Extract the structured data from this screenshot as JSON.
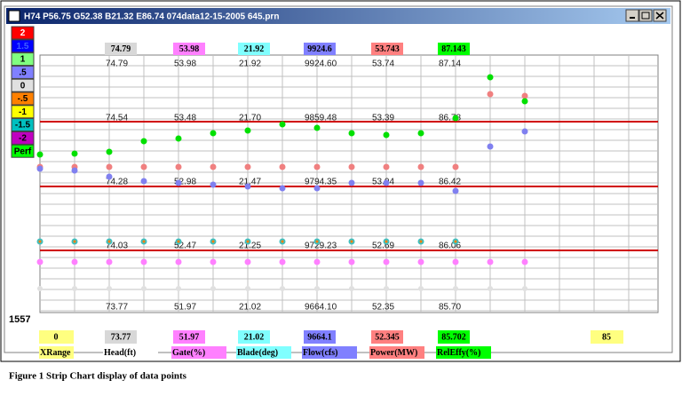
{
  "window": {
    "title": "H74 P56.75 G52.38 B21.32 E86.74 074data12-15-2005 645.prn"
  },
  "scale_buttons": [
    "2",
    "1.5",
    "1",
    ".5",
    "0",
    "-.5",
    "-1",
    "-1.5",
    "-2",
    "Perf"
  ],
  "header_values": [
    "74.79",
    "53.98",
    "21.92",
    "9924.6",
    "53.743",
    "87.143"
  ],
  "column_values": [
    [
      "74.79",
      "53.98",
      "21.92",
      "9924.60",
      "53.74",
      "87.14"
    ],
    [
      "74.54",
      "53.48",
      "21.70",
      "9859.48",
      "53.39",
      "86.78"
    ],
    [
      "74.28",
      "52.98",
      "21.47",
      "9794.35",
      "53.04",
      "86.42"
    ],
    [
      "74.03",
      "52.47",
      "21.25",
      "9729.23",
      "52.69",
      "86.06"
    ],
    [
      "73.77",
      "51.97",
      "21.02",
      "9664.10",
      "52.35",
      "85.70"
    ]
  ],
  "row_count": "1557",
  "footer": {
    "xrange": {
      "value": "0",
      "label": "XRange"
    },
    "boxes": [
      {
        "value": "73.77",
        "label": "Head(ft)"
      },
      {
        "value": "51.97",
        "label": "Gate(%)"
      },
      {
        "value": "21.02",
        "label": "Blade(deg)"
      },
      {
        "value": "9664.1",
        "label": "Flow(cfs)"
      },
      {
        "value": "52.345",
        "label": "Power(MW)"
      },
      {
        "value": "85.702",
        "label": "RelEffy(%)"
      }
    ],
    "right_value": "85"
  },
  "caption": "Figure 1 Strip Chart display of data points"
}
